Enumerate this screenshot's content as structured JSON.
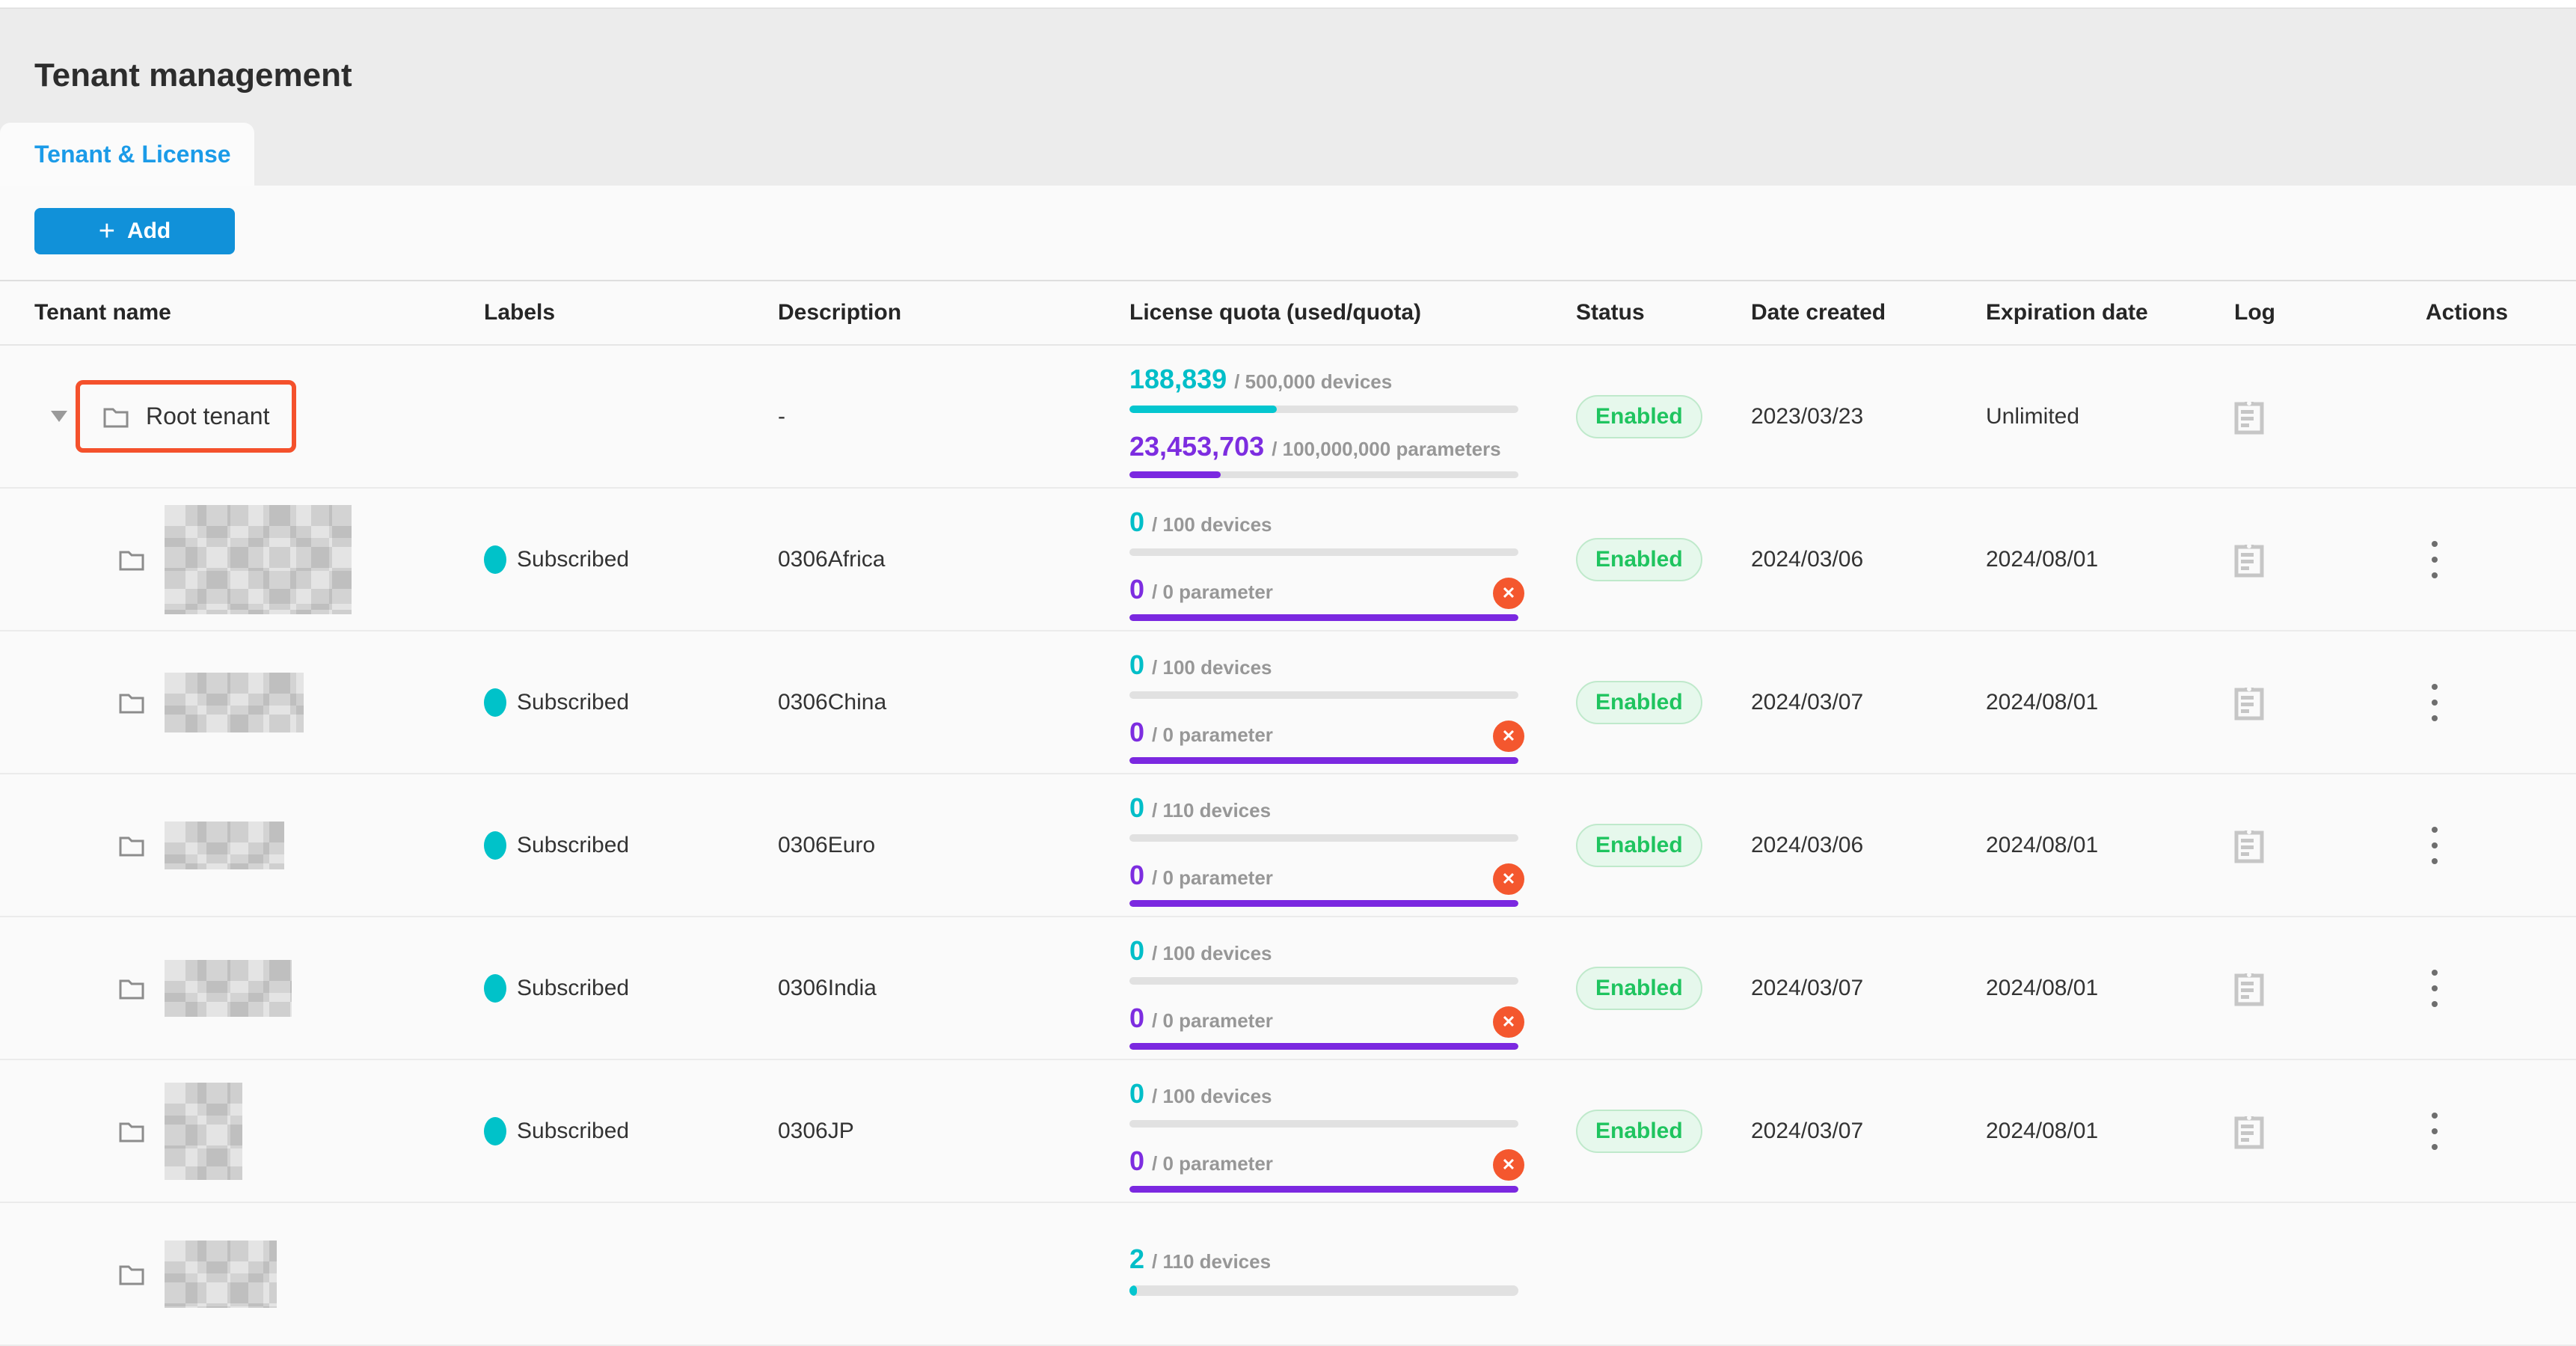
{
  "page": {
    "title": "Tenant management"
  },
  "tabs": [
    {
      "label": "Tenant & License",
      "active": true
    }
  ],
  "toolbar": {
    "add_label": "Add",
    "add_icon": "plus-icon"
  },
  "colors": {
    "accent_blue": "#1191d9",
    "tab_blue": "#1b9be8",
    "teal": "#00bec8",
    "purple": "#7d2de0",
    "status_green": "#1fc45f",
    "error_red": "#f4572e",
    "highlight_red": "#f4512c",
    "header_gray": "#ececec"
  },
  "icons": {
    "expand": "caret-down-icon",
    "tenant": "folder-icon",
    "log": "clipboard-icon",
    "actions": "kebab-menu-icon",
    "quota_error": "error-x-icon",
    "label": "teal-dot-icon"
  },
  "table": {
    "columns": [
      "Tenant name",
      "Labels",
      "Description",
      "License quota (used/quota)",
      "Status",
      "Date created",
      "Expiration date",
      "Log",
      "Actions"
    ],
    "rows": [
      {
        "name": "Root tenant",
        "redacted": false,
        "highlighted": true,
        "label": "",
        "description": "-",
        "devices": {
          "used": "188,839",
          "den": "/ 500,000 devices",
          "pct": 37.8
        },
        "params": {
          "used": "23,453,703",
          "den": "/ 100,000,000 parameters",
          "pct": 23.5,
          "error": false
        },
        "status": "Enabled",
        "created": "2023/03/23",
        "expiration": "Unlimited"
      },
      {
        "name": "",
        "redacted": true,
        "label": "Subscribed",
        "description": "0306Africa",
        "devices": {
          "used": "0",
          "den": "/ 100 devices",
          "pct": 0
        },
        "params": {
          "used": "0",
          "den": "/ 0 parameter",
          "pct": 100,
          "error": true
        },
        "status": "Enabled",
        "created": "2024/03/06",
        "expiration": "2024/08/01"
      },
      {
        "name": "",
        "redacted": true,
        "label": "Subscribed",
        "description": "0306China",
        "devices": {
          "used": "0",
          "den": "/ 100 devices",
          "pct": 0
        },
        "params": {
          "used": "0",
          "den": "/ 0 parameter",
          "pct": 100,
          "error": true
        },
        "status": "Enabled",
        "created": "2024/03/07",
        "expiration": "2024/08/01"
      },
      {
        "name": "",
        "redacted": true,
        "label": "Subscribed",
        "description": "0306Euro",
        "devices": {
          "used": "0",
          "den": "/ 110 devices",
          "pct": 0
        },
        "params": {
          "used": "0",
          "den": "/ 0 parameter",
          "pct": 100,
          "error": true
        },
        "status": "Enabled",
        "created": "2024/03/06",
        "expiration": "2024/08/01"
      },
      {
        "name": "",
        "redacted": true,
        "label": "Subscribed",
        "description": "0306India",
        "devices": {
          "used": "0",
          "den": "/ 100 devices",
          "pct": 0
        },
        "params": {
          "used": "0",
          "den": "/ 0 parameter",
          "pct": 100,
          "error": true
        },
        "status": "Enabled",
        "created": "2024/03/07",
        "expiration": "2024/08/01"
      },
      {
        "name": "",
        "redacted": true,
        "label": "Subscribed",
        "description": "0306JP",
        "devices": {
          "used": "0",
          "den": "/ 100 devices",
          "pct": 0
        },
        "params": {
          "used": "0",
          "den": "/ 0 parameter",
          "pct": 100,
          "error": true
        },
        "status": "Enabled",
        "created": "2024/03/07",
        "expiration": "2024/08/01"
      },
      {
        "name": "",
        "redacted": true,
        "label": "",
        "description": "",
        "devices": {
          "used": "2",
          "den": "/ 110 devices",
          "pct": 2
        },
        "params": {
          "used": "",
          "den": "",
          "pct": 0,
          "error": false
        },
        "status": "",
        "created": "",
        "expiration": ""
      }
    ]
  }
}
